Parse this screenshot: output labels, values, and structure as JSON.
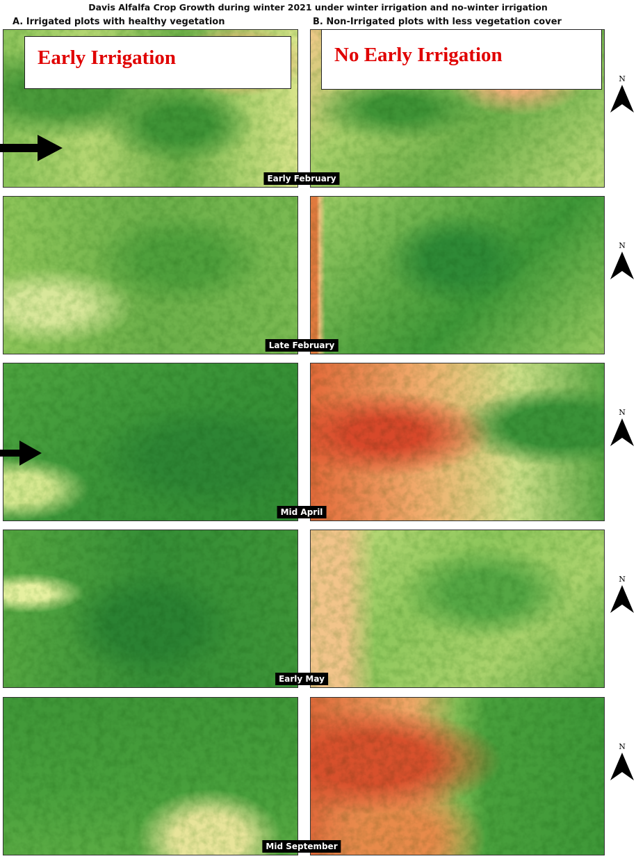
{
  "title": "Davis Alfalfa Crop Growth during winter 2021 under winter irrigation  and no-winter irrigation",
  "columns": [
    "A. Irrigated plots with healthy vegetation",
    "B. Non-Irrigated plots with less vegetation cover"
  ],
  "panel_labels": [
    "Early Irrigation",
    "No Early Irrigation"
  ],
  "rows": [
    {
      "label": "Early February",
      "north": "N"
    },
    {
      "label": "Late February",
      "north": "N"
    },
    {
      "label": "Mid April",
      "north": "N"
    },
    {
      "label": "Early May",
      "north": "N"
    },
    {
      "label": "Mid September",
      "north": "N"
    }
  ]
}
